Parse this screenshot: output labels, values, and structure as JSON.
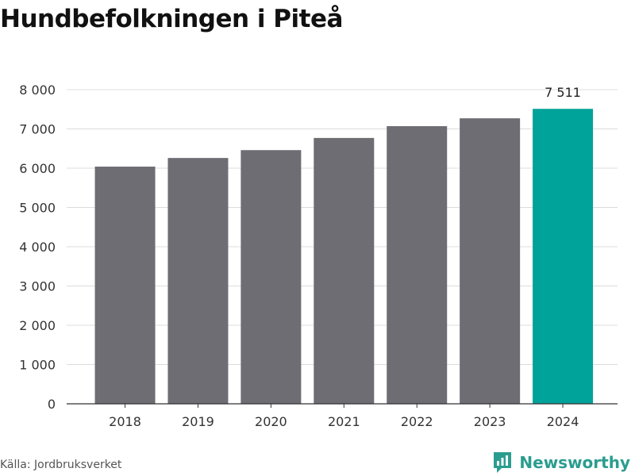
{
  "title": "Hundbefolkningen i Piteå",
  "source": "Källa: Jordbruksverket",
  "brand": {
    "name": "Newsworthy",
    "icon": "newsworthy-logo-icon"
  },
  "colors": {
    "bar": "#6e6d73",
    "highlight": "#00a39a",
    "grid": "#dcdcdc",
    "axis": "#333333"
  },
  "chart_data": {
    "type": "bar",
    "title": "Hundbefolkningen i Piteå",
    "xlabel": "",
    "ylabel": "",
    "categories": [
      "2018",
      "2019",
      "2020",
      "2021",
      "2022",
      "2023",
      "2024"
    ],
    "values": [
      6040,
      6260,
      6460,
      6770,
      7070,
      7270,
      7511
    ],
    "ylim": [
      0,
      8000
    ],
    "yticks": [
      0,
      1000,
      2000,
      3000,
      4000,
      5000,
      6000,
      7000,
      8000
    ],
    "ytick_labels": [
      "0",
      "1 000",
      "2 000",
      "3 000",
      "4 000",
      "5 000",
      "6 000",
      "7 000",
      "8 000"
    ],
    "highlight_index": 6,
    "annotations": [
      {
        "category": "2024",
        "text": "7 511"
      }
    ],
    "grid": true,
    "legend": "none"
  }
}
